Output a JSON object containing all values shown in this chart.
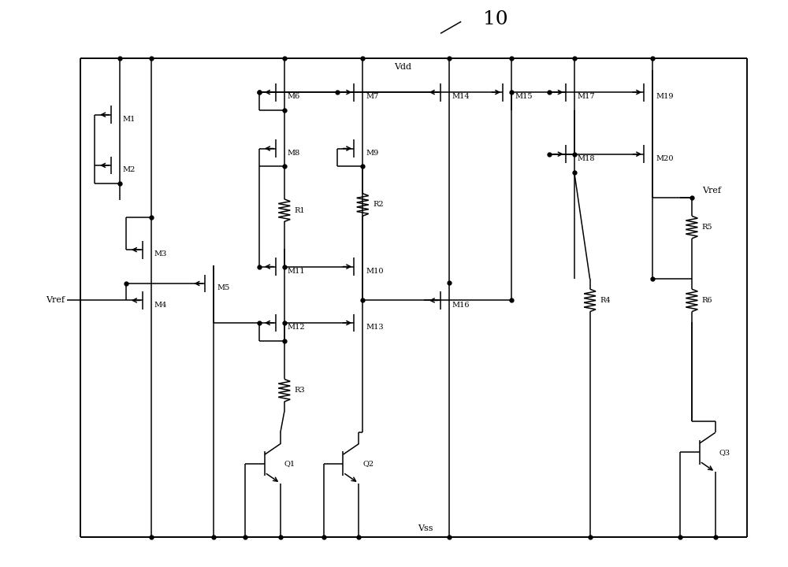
{
  "fig_width": 10.0,
  "fig_height": 7.2,
  "title": "10",
  "vdd_label": "Vdd",
  "vss_label": "Vss",
  "vref_left": "Vref",
  "vref_right": "Vref",
  "lw": 1.1
}
